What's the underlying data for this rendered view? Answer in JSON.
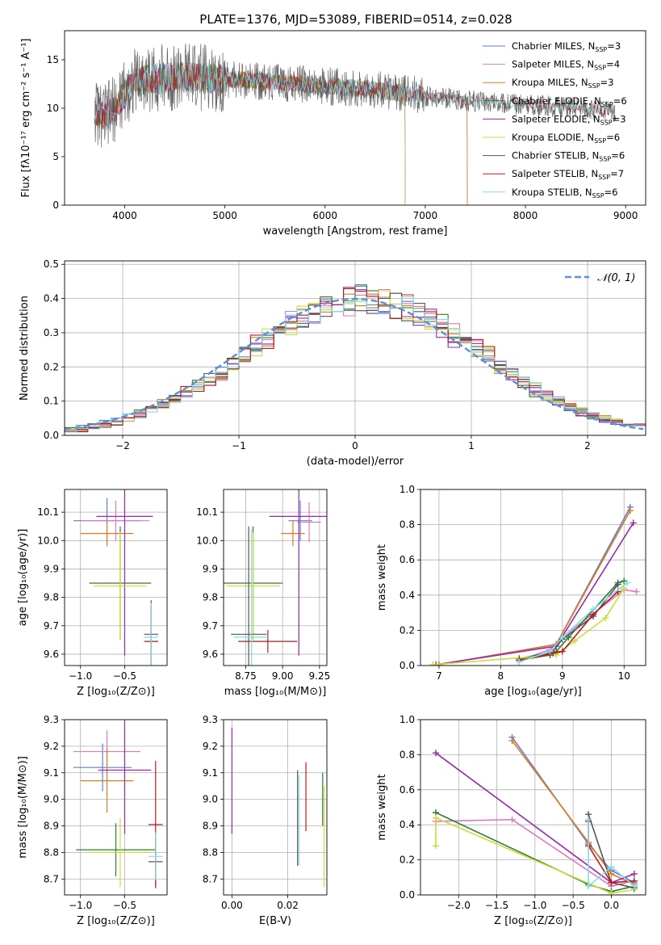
{
  "figure_title": "PLATE=1376, MJD=53089, FIBERID=0514, z=0.028",
  "colors": {
    "Chabrier MILES": "#5b7fd6",
    "Salpeter MILES": "#e377c2",
    "Kroupa MILES": "#e07b1a",
    "Chabrier ELODIE": "#2e7d32",
    "Salpeter ELODIE": "#9b27b0",
    "Kroupa ELODIE": "#cddc39",
    "Chabrier STELIB": "#555555",
    "Salpeter STELIB": "#b71c1c",
    "Kroupa STELIB": "#80deea"
  },
  "chart_data": [
    {
      "id": "spectrum",
      "type": "line",
      "xlabel": "wavelength [Angstrom, rest frame]",
      "ylabel": "Flux [fλ10⁻¹⁷ erg cm⁻² s⁻¹ A⁻¹]",
      "xlim": [
        3400,
        9200
      ],
      "ylim": [
        0,
        18
      ],
      "xticks": [
        4000,
        5000,
        6000,
        7000,
        8000,
        9000
      ],
      "yticks": [
        0,
        5,
        10,
        15
      ],
      "grid": false,
      "legend_position": "top-right",
      "legend": [
        {
          "label": "Chabrier MILES, N",
          "sub": "SSP",
          "tail": "=3",
          "series": "Chabrier MILES"
        },
        {
          "label": "Salpeter MILES, N",
          "sub": "SSP",
          "tail": "=4",
          "series": "Salpeter MILES"
        },
        {
          "label": "Kroupa MILES, N",
          "sub": "SSP",
          "tail": "=3",
          "series": "Kroupa MILES"
        },
        {
          "label": "Chabrier ELODIE, N",
          "sub": "SSP",
          "tail": "=6",
          "series": "Chabrier ELODIE"
        },
        {
          "label": "Salpeter ELODIE, N",
          "sub": "SSP",
          "tail": "=3",
          "series": "Salpeter ELODIE"
        },
        {
          "label": "Kroupa ELODIE, N",
          "sub": "SSP",
          "tail": "=6",
          "series": "Kroupa ELODIE"
        },
        {
          "label": "Chabrier STELIB, N",
          "sub": "SSP",
          "tail": "=6",
          "series": "Chabrier STELIB"
        },
        {
          "label": "Salpeter STELIB, N",
          "sub": "SSP",
          "tail": "=7",
          "series": "Salpeter STELIB"
        },
        {
          "label": "Kroupa STELIB, N",
          "sub": "SSP",
          "tail": "=6",
          "series": "Kroupa STELIB"
        }
      ],
      "continuum": [
        [
          3700,
          9.8
        ],
        [
          3800,
          9.0
        ],
        [
          3900,
          10.0
        ],
        [
          4000,
          11.5
        ],
        [
          4100,
          12.8
        ],
        [
          4300,
          13.1
        ],
        [
          4600,
          13.3
        ],
        [
          5000,
          13.0
        ],
        [
          5500,
          12.7
        ],
        [
          6000,
          12.3
        ],
        [
          6500,
          11.9
        ],
        [
          7000,
          11.3
        ],
        [
          7500,
          10.7
        ],
        [
          8000,
          10.4
        ],
        [
          8500,
          10.0
        ],
        [
          8900,
          9.7
        ]
      ],
      "series_ranges": [
        {
          "name": "Chabrier MILES",
          "x_start": 3700,
          "x_end": 7420
        },
        {
          "name": "Salpeter MILES",
          "x_start": 3700,
          "x_end": 7420
        },
        {
          "name": "Kroupa MILES",
          "x_start": 3700,
          "x_end": 7420
        },
        {
          "name": "Chabrier ELODIE",
          "x_start": 3700,
          "x_end": 6800
        },
        {
          "name": "Salpeter ELODIE",
          "x_start": 3700,
          "x_end": 6800
        },
        {
          "name": "Kroupa ELODIE",
          "x_start": 3700,
          "x_end": 6800
        },
        {
          "name": "Chabrier STELIB",
          "x_start": 3700,
          "x_end": 8900
        },
        {
          "name": "Salpeter STELIB",
          "x_start": 3700,
          "x_end": 8900
        },
        {
          "name": "Kroupa STELIB",
          "x_start": 3700,
          "x_end": 8900
        }
      ]
    },
    {
      "id": "residuals",
      "type": "histogram",
      "xlabel": "(data-model)/error",
      "ylabel": "Normed distribution",
      "xlim": [
        -2.5,
        2.5
      ],
      "ylim": [
        0,
        0.51
      ],
      "xticks": [
        -2,
        -1,
        0,
        1,
        2
      ],
      "yticks": [
        0.0,
        0.1,
        0.2,
        0.3,
        0.4,
        0.5
      ],
      "grid": true,
      "legend_position": "top-right",
      "reference_label": "𝒩(0, 1)",
      "reference_color": "#5b8fd6",
      "bin_width": 0.1
    },
    {
      "id": "age-vs-z",
      "type": "errorbar",
      "xlabel": "Z [log₁₀(Z/Z⊙)]",
      "ylabel": "age  [log₁₀(age/yr)]",
      "xlim": [
        -1.18,
        -0.02
      ],
      "ylim": [
        9.56,
        10.18
      ],
      "xticks": [
        -1.0,
        -0.5
      ],
      "yticks": [
        9.6,
        9.7,
        9.8,
        9.9,
        10.0,
        10.1
      ],
      "grid": true,
      "points": [
        {
          "series": "Chabrier MILES",
          "x": -0.7,
          "xerr": 0.38,
          "y": 10.07,
          "yerr": 0.08
        },
        {
          "series": "Salpeter MILES",
          "x": -0.6,
          "xerr": 0.38,
          "y": 10.07,
          "yerr": 0.07
        },
        {
          "series": "Kroupa MILES",
          "x": -0.7,
          "xerr": 0.3,
          "y": 10.025,
          "yerr": 0.045
        },
        {
          "series": "Chabrier ELODIE",
          "x": -0.55,
          "xerr": 0.35,
          "y": 9.85,
          "yerr": 0.2
        },
        {
          "series": "Salpeter ELODIE",
          "x": -0.5,
          "xerr": 0.32,
          "y": 10.085,
          "yerr": 0.49
        },
        {
          "series": "Kroupa ELODIE",
          "x": -0.55,
          "xerr": 0.3,
          "y": 9.84,
          "yerr": 0.19
        },
        {
          "series": "Chabrier STELIB",
          "x": -0.2,
          "xerr": 0.08,
          "y": 9.67,
          "yerr": 0.12
        },
        {
          "series": "Salpeter STELIB",
          "x": -0.2,
          "xerr": 0.08,
          "y": 9.645,
          "yerr": 0.12
        },
        {
          "series": "Kroupa STELIB",
          "x": -0.2,
          "xerr": 0.08,
          "y": 9.66,
          "yerr": 0.12
        }
      ]
    },
    {
      "id": "age-vs-mass",
      "type": "errorbar",
      "xlabel": "mass [log₁₀(M/M⊙)]",
      "ylabel": "",
      "xlim": [
        8.6,
        9.3
      ],
      "ylim": [
        9.56,
        10.18
      ],
      "xticks": [
        8.75,
        9.0,
        9.25
      ],
      "yticks": [
        9.6,
        9.7,
        9.8,
        9.9,
        10.0,
        10.1
      ],
      "grid": true,
      "points": [
        {
          "series": "Chabrier MILES",
          "x": 9.12,
          "xerr": 0.08,
          "y": 10.07,
          "yerr": 0.07
        },
        {
          "series": "Salpeter MILES",
          "x": 9.18,
          "xerr": 0.08,
          "y": 10.065,
          "yerr": 0.07
        },
        {
          "series": "Kroupa MILES",
          "x": 9.07,
          "xerr": 0.08,
          "y": 10.025,
          "yerr": 0.045
        },
        {
          "series": "Chabrier ELODIE",
          "x": 8.8,
          "xerr": 0.2,
          "y": 9.85,
          "yerr": 0.2
        },
        {
          "series": "Salpeter ELODIE",
          "x": 9.11,
          "xerr": 0.2,
          "y": 10.085,
          "yerr": 0.49
        },
        {
          "series": "Kroupa ELODIE",
          "x": 8.8,
          "xerr": 0.18,
          "y": 9.84,
          "yerr": 0.19
        },
        {
          "series": "Chabrier STELIB",
          "x": 8.77,
          "xerr": 0.12,
          "y": 9.67,
          "yerr": 0.38
        },
        {
          "series": "Salpeter STELIB",
          "x": 8.9,
          "xerr": 0.2,
          "y": 9.645,
          "yerr": 0.04
        },
        {
          "series": "Kroupa STELIB",
          "x": 8.79,
          "xerr": 0.12,
          "y": 9.66,
          "yerr": 0.38
        }
      ]
    },
    {
      "id": "mass-weight-vs-age",
      "type": "line",
      "xlabel": "age  [log₁₀(age/yr)]",
      "ylabel": "mass weight",
      "xlim": [
        6.7,
        10.35
      ],
      "ylim": [
        0,
        1.0
      ],
      "xticks": [
        7,
        8,
        9,
        10
      ],
      "yticks": [
        0.0,
        0.2,
        0.4,
        0.6,
        0.8,
        1.0
      ],
      "grid": true,
      "series": [
        {
          "name": "Chabrier MILES",
          "points": [
            [
              7.0,
              0.005
            ],
            [
              8.9,
              0.12
            ],
            [
              10.1,
              0.9
            ]
          ]
        },
        {
          "name": "Salpeter MILES",
          "points": [
            [
              8.3,
              0.03
            ],
            [
              8.8,
              0.09
            ],
            [
              9.0,
              0.16
            ],
            [
              10.0,
              0.43
            ],
            [
              10.2,
              0.42
            ]
          ]
        },
        {
          "name": "Kroupa MILES",
          "points": [
            [
              7.0,
              0.005
            ],
            [
              8.9,
              0.12
            ],
            [
              10.1,
              0.88
            ]
          ]
        },
        {
          "name": "Chabrier ELODIE",
          "points": [
            [
              8.3,
              0.04
            ],
            [
              8.9,
              0.08
            ],
            [
              9.1,
              0.16
            ],
            [
              9.9,
              0.47
            ],
            [
              10.0,
              0.48
            ]
          ]
        },
        {
          "name": "Salpeter ELODIE",
          "points": [
            [
              6.95,
              0.005
            ],
            [
              8.9,
              0.11
            ],
            [
              10.15,
              0.81
            ]
          ]
        },
        {
          "name": "Kroupa ELODIE",
          "points": [
            [
              6.9,
              0.005
            ],
            [
              8.9,
              0.06
            ],
            [
              9.2,
              0.14
            ],
            [
              9.7,
              0.27
            ],
            [
              10.0,
              0.44
            ]
          ]
        },
        {
          "name": "Chabrier STELIB",
          "points": [
            [
              8.3,
              0.03
            ],
            [
              8.8,
              0.06
            ],
            [
              9.0,
              0.15
            ],
            [
              9.5,
              0.28
            ],
            [
              9.9,
              0.46
            ]
          ]
        },
        {
          "name": "Salpeter STELIB",
          "points": [
            [
              8.3,
              0.03
            ],
            [
              8.85,
              0.07
            ],
            [
              9.0,
              0.08
            ],
            [
              9.5,
              0.29
            ],
            [
              9.9,
              0.42
            ]
          ]
        },
        {
          "name": "Kroupa STELIB",
          "points": [
            [
              8.3,
              0.02
            ],
            [
              8.8,
              0.08
            ],
            [
              9.0,
              0.16
            ],
            [
              9.5,
              0.32
            ],
            [
              10.05,
              0.47
            ]
          ]
        }
      ]
    },
    {
      "id": "mass-vs-z",
      "type": "errorbar",
      "xlabel": "Z [log₁₀(Z/Z⊙)]",
      "ylabel": "mass [log₁₀(M/M⊙)]",
      "xlim": [
        -1.18,
        -0.02
      ],
      "ylim": [
        8.64,
        9.3
      ],
      "xticks": [
        -1.0,
        -0.5
      ],
      "yticks": [
        8.7,
        8.8,
        8.9,
        9.0,
        9.1,
        9.2,
        9.3
      ],
      "grid": true,
      "points": [
        {
          "series": "Chabrier MILES",
          "x": -0.75,
          "xerr": 0.33,
          "y": 9.12,
          "yerr": 0.09
        },
        {
          "series": "Salpeter MILES",
          "x": -0.7,
          "xerr": 0.38,
          "y": 9.18,
          "yerr": 0.08
        },
        {
          "series": "Kroupa MILES",
          "x": -0.7,
          "xerr": 0.3,
          "y": 9.07,
          "yerr": 0.12
        },
        {
          "series": "Chabrier ELODIE",
          "x": -0.6,
          "xerr": 0.45,
          "y": 8.81,
          "yerr": 0.1
        },
        {
          "series": "Salpeter ELODIE",
          "x": -0.5,
          "xerr": 0.3,
          "y": 9.11,
          "yerr": 0.24
        },
        {
          "series": "Kroupa ELODIE",
          "x": -0.55,
          "xerr": 0.35,
          "y": 8.8,
          "yerr": 0.13
        },
        {
          "series": "Chabrier STELIB",
          "x": -0.15,
          "xerr": 0.08,
          "y": 8.765,
          "yerr": 0.09
        },
        {
          "series": "Salpeter STELIB",
          "x": -0.15,
          "xerr": 0.08,
          "y": 8.905,
          "yerr": 0.24
        },
        {
          "series": "Kroupa STELIB",
          "x": -0.15,
          "xerr": 0.08,
          "y": 8.785,
          "yerr": 0.09
        }
      ]
    },
    {
      "id": "mass-vs-ebv",
      "type": "errorbar",
      "xlabel": "E(B-V)",
      "ylabel": "",
      "xlim": [
        -0.003,
        0.034
      ],
      "ylim": [
        8.64,
        9.3
      ],
      "xticks": [
        0.0,
        0.02
      ],
      "yticks": [
        8.7,
        8.8,
        8.9,
        9.0,
        9.1,
        9.2,
        9.3
      ],
      "grid": true,
      "points": [
        {
          "series": "Salpeter ELODIE",
          "x": 0.0,
          "xerr": 0,
          "y": 9.07,
          "yerr": 0.2
        },
        {
          "series": "Chabrier STELIB",
          "x": 0.0235,
          "xerr": 0,
          "y": 8.93,
          "yerr": 0.18
        },
        {
          "series": "Kroupa STELIB",
          "x": 0.024,
          "xerr": 0,
          "y": 8.92,
          "yerr": 0.17
        },
        {
          "series": "Salpeter STELIB",
          "x": 0.0265,
          "xerr": 0,
          "y": 9.01,
          "yerr": 0.13
        },
        {
          "series": "Chabrier ELODIE",
          "x": 0.0325,
          "xerr": 0,
          "y": 9.0,
          "yerr": 0.1
        },
        {
          "series": "Kroupa ELODIE",
          "x": 0.033,
          "xerr": 0,
          "y": 8.86,
          "yerr": 0.19
        }
      ]
    },
    {
      "id": "mass-weight-vs-z",
      "type": "line",
      "xlabel": "Z [log₁₀(Z/Z⊙)]",
      "ylabel": "mass weight",
      "xlim": [
        -2.5,
        0.45
      ],
      "ylim": [
        0,
        1.0
      ],
      "xticks": [
        -2.0,
        -1.5,
        -1.0,
        -0.5,
        0.0
      ],
      "yticks": [
        0.0,
        0.2,
        0.4,
        0.6,
        0.8,
        1.0
      ],
      "grid": true,
      "series": [
        {
          "name": "Chabrier MILES",
          "points": [
            [
              -1.3,
              0.9
            ],
            [
              -0.3,
              0.29
            ],
            [
              0.0,
              0.14
            ],
            [
              0.3,
              0.07
            ]
          ]
        },
        {
          "name": "Salpeter MILES",
          "points": [
            [
              -2.3,
              0.42
            ],
            [
              -1.3,
              0.43
            ],
            [
              0.0,
              0.05
            ],
            [
              0.3,
              0.08
            ]
          ]
        },
        {
          "name": "Kroupa MILES",
          "points": [
            [
              -1.3,
              0.88
            ],
            [
              -0.3,
              0.3
            ],
            [
              0.0,
              0.12
            ],
            [
              0.3,
              0.06
            ]
          ]
        },
        {
          "name": "Chabrier ELODIE",
          "points": [
            [
              -2.3,
              0.47
            ],
            [
              -0.3,
              0.06
            ],
            [
              0.0,
              0.02
            ],
            [
              0.3,
              0.05
            ]
          ]
        },
        {
          "name": "Salpeter ELODIE",
          "points": [
            [
              -2.3,
              0.81
            ],
            [
              0.0,
              0.07
            ],
            [
              0.3,
              0.12
            ]
          ]
        },
        {
          "name": "Kroupa ELODIE",
          "points": [
            [
              -2.3,
              0.28
            ],
            [
              -2.3,
              0.44
            ],
            [
              0.0,
              0.01
            ],
            [
              0.3,
              0.03
            ]
          ]
        },
        {
          "name": "Chabrier STELIB",
          "points": [
            [
              -0.3,
              0.46
            ],
            [
              0.0,
              0.07
            ],
            [
              0.3,
              0.04
            ]
          ]
        },
        {
          "name": "Salpeter STELIB",
          "points": [
            [
              -0.3,
              0.42
            ],
            [
              -0.3,
              0.28
            ],
            [
              0.0,
              0.07
            ],
            [
              0.3,
              0.08
            ]
          ]
        },
        {
          "name": "Kroupa STELIB",
          "points": [
            [
              -0.3,
              0.43
            ],
            [
              -0.3,
              0.05
            ],
            [
              0.0,
              0.16
            ],
            [
              0.3,
              0.05
            ]
          ]
        }
      ]
    }
  ]
}
